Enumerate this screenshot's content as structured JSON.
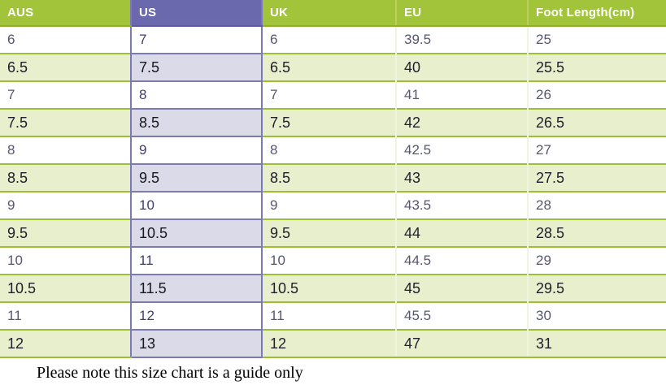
{
  "chart_data": {
    "type": "table",
    "columns": [
      "AUS",
      "US",
      "UK",
      "EU",
      "Foot Length(cm)"
    ],
    "highlighted_column": "US",
    "rows": [
      [
        "6",
        "7",
        "6",
        "39.5",
        "25"
      ],
      [
        "6.5",
        "7.5",
        "6.5",
        "40",
        "25.5"
      ],
      [
        "7",
        "8",
        "7",
        "41",
        "26"
      ],
      [
        "7.5",
        "8.5",
        "7.5",
        "42",
        "26.5"
      ],
      [
        "8",
        "9",
        "8",
        "42.5",
        "27"
      ],
      [
        "8.5",
        "9.5",
        "8.5",
        "43",
        "27.5"
      ],
      [
        "9",
        "10",
        "9",
        "43.5",
        "28"
      ],
      [
        "9.5",
        "10.5",
        "9.5",
        "44",
        "28.5"
      ],
      [
        "10",
        "11",
        "10",
        "44.5",
        "29"
      ],
      [
        "10.5",
        "11.5",
        "10.5",
        "45",
        "29.5"
      ],
      [
        "11",
        "12",
        "11",
        "45.5",
        "30"
      ],
      [
        "12",
        "13",
        "12",
        "47",
        "31"
      ]
    ],
    "note": "Please note this size chart is a guide only"
  },
  "footer": {
    "note": "Please note this size chart is a guide only"
  },
  "colors": {
    "header_green": "#a2c43b",
    "header_purple": "#6a69ae",
    "row_light_green": "#e7efcd",
    "row_light_purple": "#dbdae8",
    "border_green": "#9cbe33",
    "border_purple": "#7b7ab5",
    "header_text": "#ffffff",
    "footer_text": "#000000"
  }
}
